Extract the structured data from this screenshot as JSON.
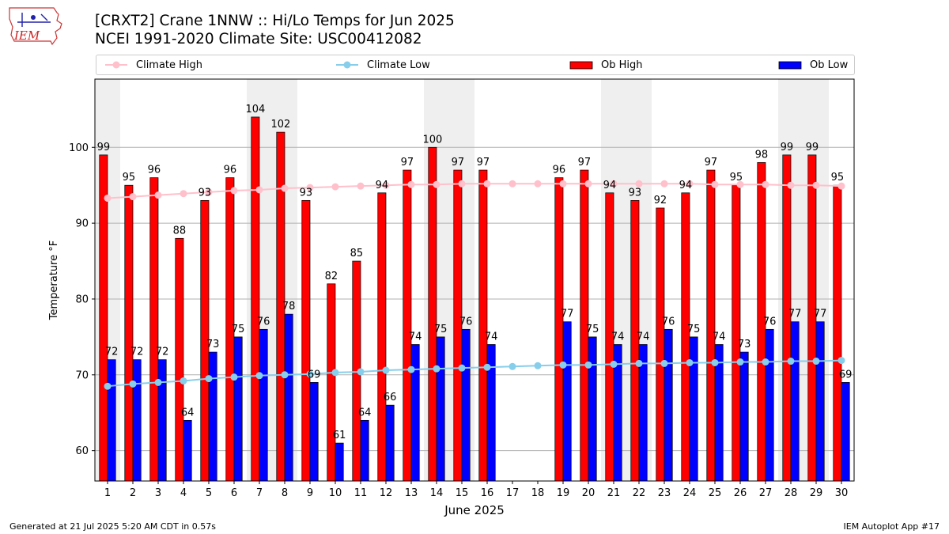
{
  "logo": {
    "text": "IEM"
  },
  "title": {
    "line1": "[CRXT2] Crane 1NNW :: Hi/Lo Temps for Jun 2025",
    "line2": "NCEI 1991-2020 Climate Site: USC00412082"
  },
  "legend": {
    "climate_high": "Climate High",
    "climate_low": "Climate Low",
    "ob_high": "Ob High",
    "ob_low": "Ob Low"
  },
  "footer": {
    "left": "Generated at 21 Jul 2025 5:20 AM CDT in 0.57s",
    "right": "IEM Autoplot App #17"
  },
  "colors": {
    "ob_high": "#ff0000",
    "ob_low": "#0000ff",
    "climate_high": "#ffc0cb",
    "climate_low": "#87ceeb",
    "weekend_shade": "#efefef",
    "grid": "#b0b0b0"
  },
  "chart_data": {
    "type": "bar",
    "xlabel": "June 2025",
    "ylabel": "Temperature °F",
    "ylim": [
      56,
      109
    ],
    "yticks": [
      60,
      70,
      80,
      90,
      100
    ],
    "grid": "horizontal",
    "legend_position": "top",
    "categories": [
      "1",
      "2",
      "3",
      "4",
      "5",
      "6",
      "7",
      "8",
      "9",
      "10",
      "11",
      "12",
      "13",
      "14",
      "15",
      "16",
      "17",
      "18",
      "19",
      "20",
      "21",
      "22",
      "23",
      "24",
      "25",
      "26",
      "27",
      "28",
      "29",
      "30"
    ],
    "shaded_days": [
      1,
      7,
      8,
      14,
      15,
      21,
      22,
      28,
      29
    ],
    "series": [
      {
        "name": "Ob High",
        "kind": "bar",
        "values": [
          99,
          95,
          96,
          88,
          93,
          96,
          104,
          102,
          93,
          82,
          85,
          94,
          97,
          100,
          97,
          97,
          null,
          null,
          96,
          97,
          94,
          93,
          92,
          94,
          97,
          95,
          98,
          99,
          99,
          95
        ]
      },
      {
        "name": "Ob Low",
        "kind": "bar",
        "values": [
          72,
          72,
          72,
          64,
          73,
          75,
          76,
          78,
          69,
          61,
          64,
          66,
          74,
          75,
          76,
          74,
          null,
          null,
          77,
          75,
          74,
          74,
          76,
          75,
          74,
          73,
          76,
          77,
          77,
          69
        ]
      },
      {
        "name": "Climate High",
        "kind": "line",
        "values": [
          93.3,
          93.5,
          93.7,
          93.9,
          94.1,
          94.3,
          94.4,
          94.6,
          94.7,
          94.8,
          94.9,
          95.0,
          95.1,
          95.1,
          95.2,
          95.2,
          95.2,
          95.2,
          95.2,
          95.2,
          95.2,
          95.2,
          95.2,
          95.2,
          95.1,
          95.1,
          95.1,
          95.0,
          95.0,
          94.9
        ]
      },
      {
        "name": "Climate Low",
        "kind": "line",
        "values": [
          68.5,
          68.8,
          69.0,
          69.2,
          69.5,
          69.7,
          69.9,
          70.0,
          70.1,
          70.3,
          70.4,
          70.6,
          70.7,
          70.8,
          70.9,
          71.0,
          71.1,
          71.2,
          71.3,
          71.3,
          71.4,
          71.5,
          71.5,
          71.6,
          71.6,
          71.7,
          71.7,
          71.8,
          71.8,
          71.9
        ]
      }
    ]
  }
}
